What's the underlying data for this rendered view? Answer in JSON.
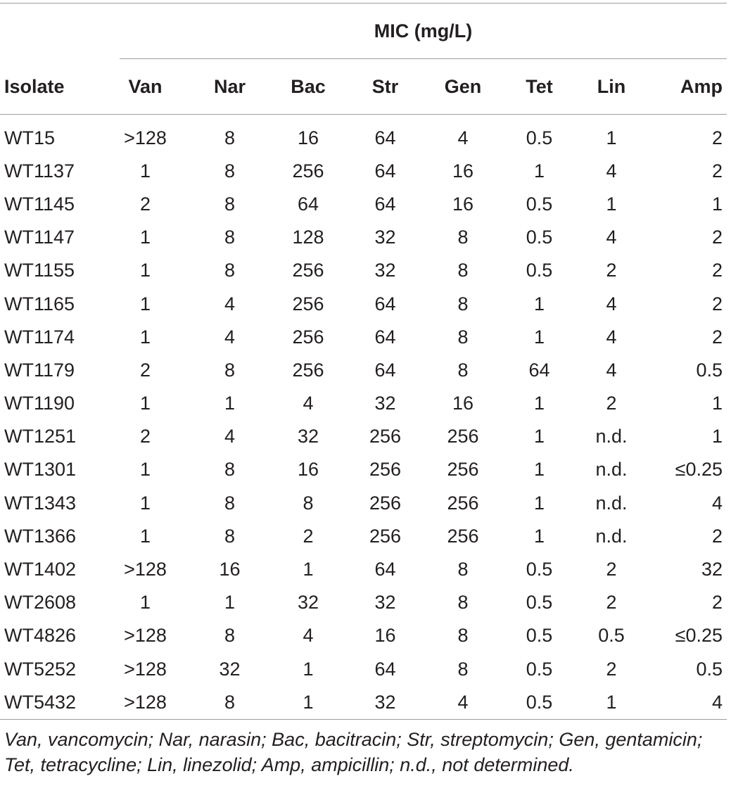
{
  "table": {
    "group_header": "MIC (mg/L)",
    "columns": [
      "Isolate",
      "Van",
      "Nar",
      "Bac",
      "Str",
      "Gen",
      "Tet",
      "Lin",
      "Amp"
    ],
    "rows": [
      [
        "WT15",
        ">128",
        "8",
        "16",
        "64",
        "4",
        "0.5",
        "1",
        "2"
      ],
      [
        "WT1137",
        "1",
        "8",
        "256",
        "64",
        "16",
        "1",
        "4",
        "2"
      ],
      [
        "WT1145",
        "2",
        "8",
        "64",
        "64",
        "16",
        "0.5",
        "1",
        "1"
      ],
      [
        "WT1147",
        "1",
        "8",
        "128",
        "32",
        "8",
        "0.5",
        "4",
        "2"
      ],
      [
        "WT1155",
        "1",
        "8",
        "256",
        "32",
        "8",
        "0.5",
        "2",
        "2"
      ],
      [
        "WT1165",
        "1",
        "4",
        "256",
        "64",
        "8",
        "1",
        "4",
        "2"
      ],
      [
        "WT1174",
        "1",
        "4",
        "256",
        "64",
        "8",
        "1",
        "4",
        "2"
      ],
      [
        "WT1179",
        "2",
        "8",
        "256",
        "64",
        "8",
        "64",
        "4",
        "0.5"
      ],
      [
        "WT1190",
        "1",
        "1",
        "4",
        "32",
        "16",
        "1",
        "2",
        "1"
      ],
      [
        "WT1251",
        "2",
        "4",
        "32",
        "256",
        "256",
        "1",
        "n.d.",
        "1"
      ],
      [
        "WT1301",
        "1",
        "8",
        "16",
        "256",
        "256",
        "1",
        "n.d.",
        "≤0.25"
      ],
      [
        "WT1343",
        "1",
        "8",
        "8",
        "256",
        "256",
        "1",
        "n.d.",
        "4"
      ],
      [
        "WT1366",
        "1",
        "8",
        "2",
        "256",
        "256",
        "1",
        "n.d.",
        "2"
      ],
      [
        "WT1402",
        ">128",
        "16",
        "1",
        "64",
        "8",
        "0.5",
        "2",
        "32"
      ],
      [
        "WT2608",
        "1",
        "1",
        "32",
        "32",
        "8",
        "0.5",
        "2",
        "2"
      ],
      [
        "WT4826",
        ">128",
        "8",
        "4",
        "16",
        "8",
        "0.5",
        "0.5",
        "≤0.25"
      ],
      [
        "WT5252",
        ">128",
        "32",
        "1",
        "64",
        "8",
        "0.5",
        "2",
        "0.5"
      ],
      [
        "WT5432",
        ">128",
        "8",
        "1",
        "32",
        "4",
        "0.5",
        "1",
        "4"
      ]
    ]
  },
  "footnote": "Van, vancomycin; Nar, narasin; Bac, bacitracin; Str, streptomycin; Gen, gentamicin; Tet, tetracycline; Lin, linezolid; Amp, ampicillin; n.d., not determined."
}
